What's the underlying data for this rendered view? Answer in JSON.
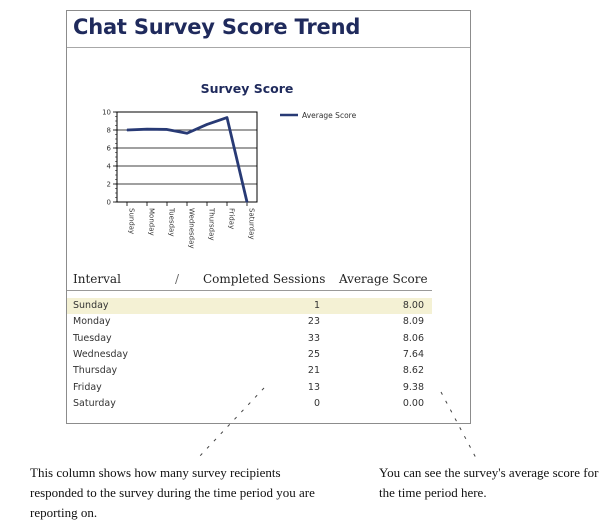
{
  "report": {
    "title": "Chat Survey Score Trend"
  },
  "chart_data": {
    "type": "line",
    "title": "Survey Score",
    "categories": [
      "Sunday",
      "Monday",
      "Tuesday",
      "Wednesday",
      "Thursday",
      "Friday",
      "Saturday"
    ],
    "series": [
      {
        "name": "Average Score",
        "values": [
          8.0,
          8.09,
          8.06,
          7.64,
          8.62,
          9.38,
          0.0
        ],
        "color": "#283a75"
      }
    ],
    "yticks": [
      "0",
      "2",
      "4",
      "6",
      "8",
      "10"
    ],
    "ylim": [
      0,
      10
    ],
    "grid": true,
    "legend": "top-right"
  },
  "table": {
    "headers": {
      "interval": "Interval",
      "sort_mark": "/",
      "completed": "Completed Sessions",
      "average": "Average Score"
    },
    "rows": [
      {
        "interval": "Sunday",
        "completed": "1",
        "average": "8.00",
        "highlight": true
      },
      {
        "interval": "Monday",
        "completed": "23",
        "average": "8.09"
      },
      {
        "interval": "Tuesday",
        "completed": "33",
        "average": "8.06"
      },
      {
        "interval": "Wednesday",
        "completed": "25",
        "average": "7.64"
      },
      {
        "interval": "Thursday",
        "completed": "21",
        "average": "8.62"
      },
      {
        "interval": "Friday",
        "completed": "13",
        "average": "9.38"
      },
      {
        "interval": "Saturday",
        "completed": "0",
        "average": "0.00"
      }
    ]
  },
  "annotations": {
    "left": "This column shows how many survey recipients responded to the survey during the time period you are reporting on.",
    "right": "You can see the survey's average score for the time period here."
  }
}
